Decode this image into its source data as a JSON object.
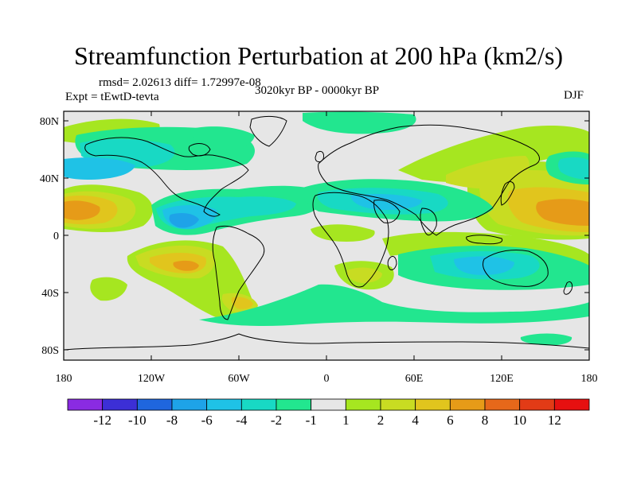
{
  "title": "Streamfunction Perturbation at 200 hPa (km2/s)",
  "stats_line": "rmsd= 2.02613 diff= 1.72997e-08",
  "experiment": "Expt = tEwtD-tevta",
  "period": "3020kyr BP - 0000kyr BP",
  "season": "DJF",
  "map": {
    "lat_ticks": [
      "80N",
      "40N",
      "0",
      "40S",
      "80S"
    ],
    "lon_ticks": [
      "180",
      "120W",
      "60W",
      "0",
      "60E",
      "120E",
      "180"
    ],
    "ocean_color": "#e6e6e6"
  },
  "colorbar": {
    "labels": [
      "-12",
      "-10",
      "-8",
      "-6",
      "-4",
      "-2",
      "-1",
      "1",
      "2",
      "4",
      "6",
      "8",
      "10",
      "12"
    ],
    "colors": [
      "#8a2be2",
      "#3c2fd6",
      "#1f66de",
      "#1ea3e8",
      "#1fc2e6",
      "#18d9c4",
      "#22e68f",
      "#e6e6e6",
      "#a6e620",
      "#c8dc22",
      "#e1c51d",
      "#e69b18",
      "#e6681a",
      "#e23b16",
      "#e61010"
    ]
  },
  "chart_data": {
    "type": "heatmap",
    "title": "Streamfunction Perturbation at 200 hPa (km2/s)",
    "xlabel": "",
    "ylabel": "",
    "x_range": [
      -180,
      180
    ],
    "y_range": [
      -90,
      90
    ],
    "levels": [
      -12,
      -10,
      -8,
      -6,
      -4,
      -2,
      -1,
      1,
      2,
      4,
      6,
      8,
      10,
      12
    ],
    "features": [
      {
        "lon": -172,
        "lat": 18,
        "value": 8
      },
      {
        "lon": 160,
        "lat": 15,
        "value": 7
      },
      {
        "lon": 122,
        "lat": 35,
        "value": 4
      },
      {
        "lon": 130,
        "lat": 52,
        "value": 2
      },
      {
        "lon": -95,
        "lat": -22,
        "value": 7
      },
      {
        "lon": -55,
        "lat": -42,
        "value": 4
      },
      {
        "lon": -135,
        "lat": -32,
        "value": 2
      },
      {
        "lon": 25,
        "lat": -25,
        "value": 4
      },
      {
        "lon": 10,
        "lat": 0,
        "value": 2
      },
      {
        "lon": 95,
        "lat": -12,
        "value": 2
      },
      {
        "lon": -115,
        "lat": 15,
        "value": -4
      },
      {
        "lon": -40,
        "lat": 25,
        "value": -3
      },
      {
        "lon": 40,
        "lat": 23,
        "value": -3
      },
      {
        "lon": 110,
        "lat": -28,
        "value": -4
      },
      {
        "lon": 180,
        "lat": 40,
        "value": -4
      },
      {
        "lon": -120,
        "lat": 75,
        "value": -2
      },
      {
        "lon": 20,
        "lat": 78,
        "value": -2
      },
      {
        "lon": -20,
        "lat": -40,
        "value": -2
      },
      {
        "lon": 10,
        "lat": -50,
        "value": -2
      },
      {
        "lon": 120,
        "lat": -58,
        "value": -2
      }
    ]
  }
}
